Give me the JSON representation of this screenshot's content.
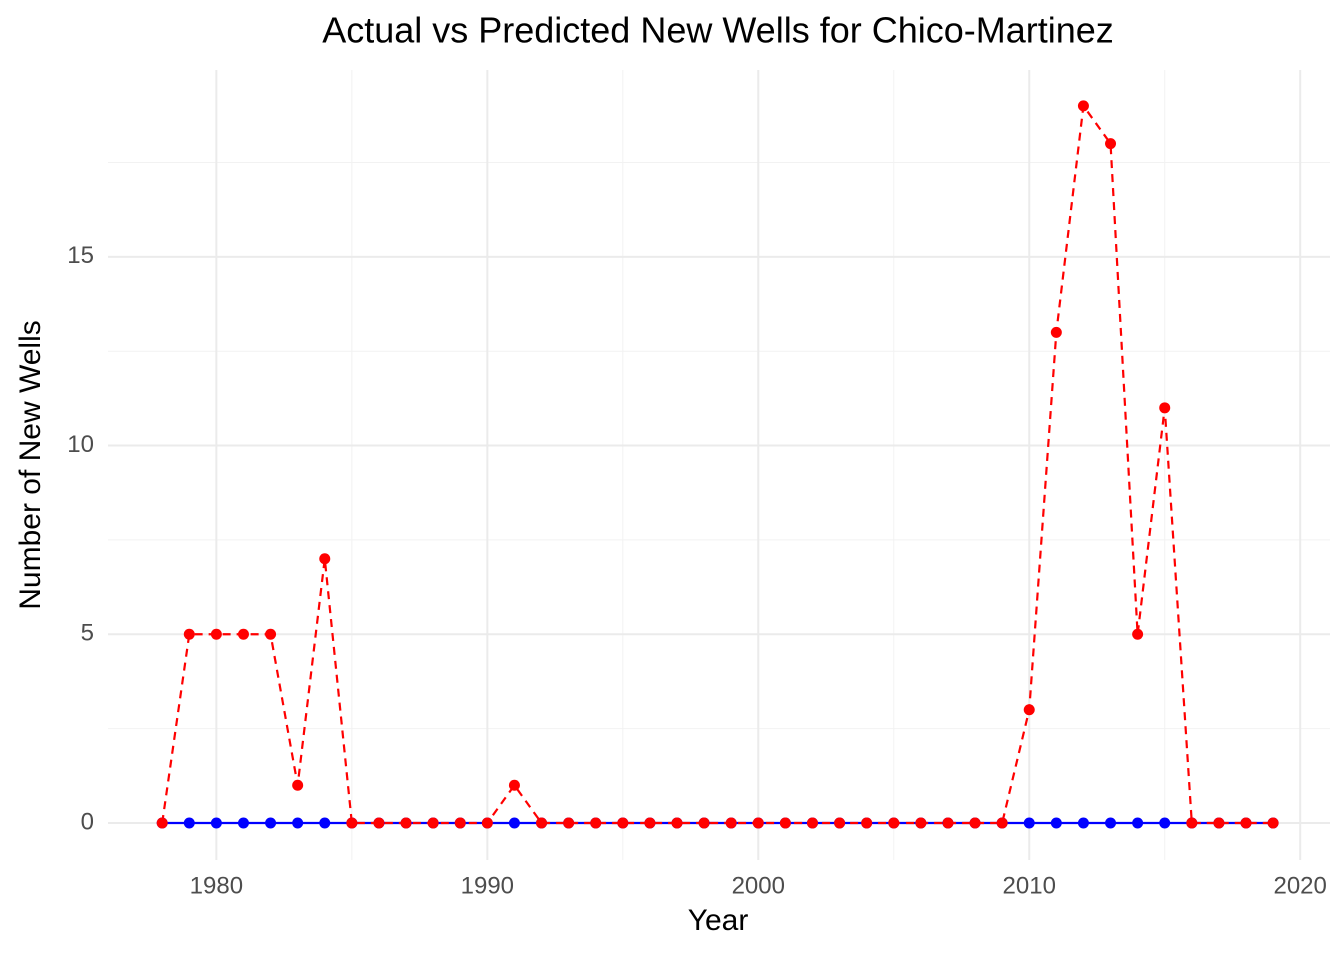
{
  "chart_data": {
    "type": "line",
    "title": "Actual vs Predicted New Wells for Chico-Martinez",
    "x_label": "Year",
    "y_label": "Number of New Wells",
    "x": [
      1978,
      1979,
      1980,
      1981,
      1982,
      1983,
      1984,
      1985,
      1986,
      1987,
      1988,
      1989,
      1990,
      1991,
      1992,
      1993,
      1994,
      1995,
      1996,
      1997,
      1998,
      1999,
      2000,
      2001,
      2002,
      2003,
      2004,
      2005,
      2006,
      2007,
      2008,
      2009,
      2010,
      2011,
      2012,
      2013,
      2014,
      2015,
      2016,
      2017,
      2018,
      2019
    ],
    "series": [
      {
        "color": "#0000ff",
        "linestyle": "solid",
        "values": [
          0,
          0,
          0,
          0,
          0,
          0,
          0,
          0,
          0,
          0,
          0,
          0,
          0,
          0,
          0,
          0,
          0,
          0,
          0,
          0,
          0,
          0,
          0,
          0,
          0,
          0,
          0,
          0,
          0,
          0,
          0,
          0,
          0,
          0,
          0,
          0,
          0,
          0,
          0,
          0,
          0,
          0
        ]
      },
      {
        "color": "#ff0000",
        "linestyle": "dashed",
        "values": [
          0,
          5,
          5,
          5,
          5,
          1,
          7,
          0,
          0,
          0,
          0,
          0,
          0,
          1,
          0,
          0,
          0,
          0,
          0,
          0,
          0,
          0,
          0,
          0,
          0,
          0,
          0,
          0,
          0,
          0,
          0,
          0,
          3,
          13,
          19,
          18,
          5,
          11,
          0,
          0,
          0,
          0
        ]
      }
    ],
    "xlim": [
      1976,
      2021.1
    ],
    "ylim": [
      -0.98,
      19.95
    ],
    "xticks": [
      1980,
      1990,
      2000,
      2010,
      2020
    ],
    "yticks": [
      0,
      5,
      10,
      15
    ],
    "grid": true
  }
}
